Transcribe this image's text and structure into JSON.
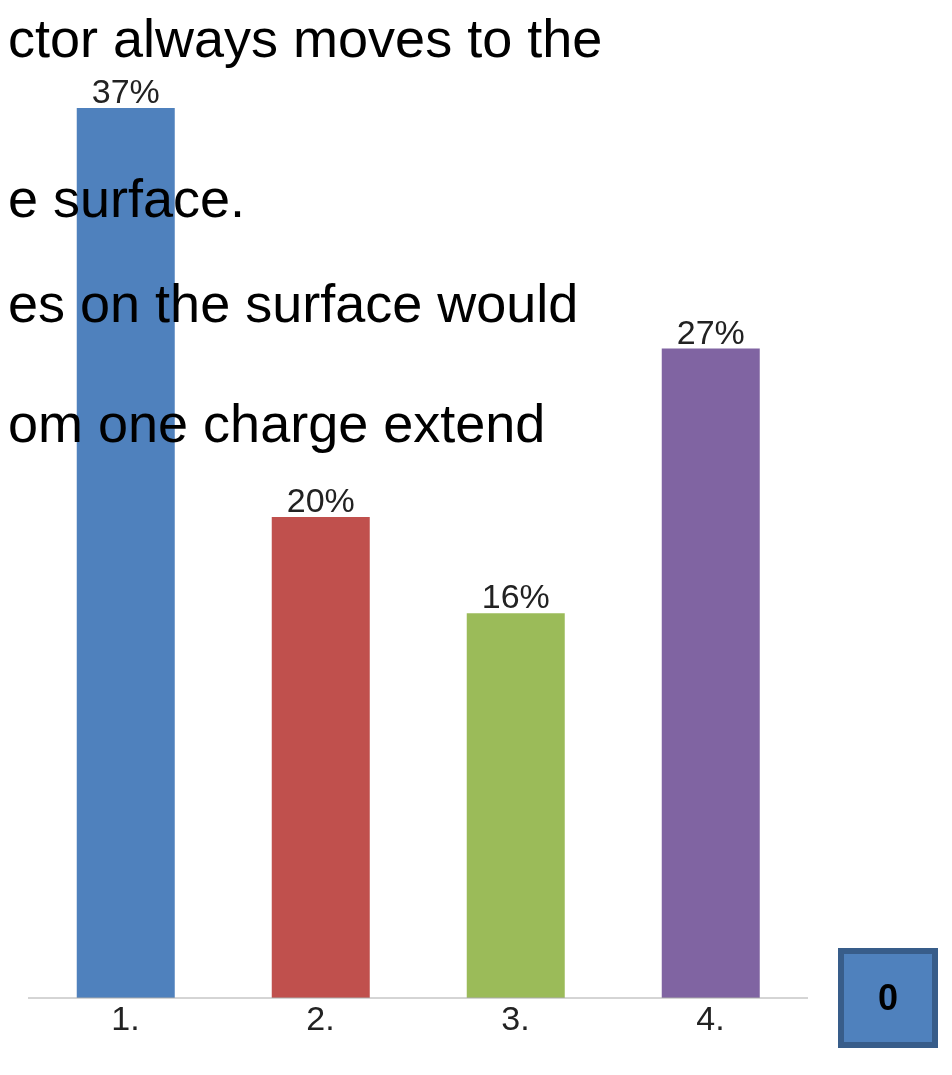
{
  "chart_data": {
    "type": "bar",
    "categories": [
      "1.",
      "2.",
      "3.",
      "4."
    ],
    "values": [
      37,
      20,
      16,
      27
    ],
    "colors": [
      "#4f81bd",
      "#c0504d",
      "#9bbb59",
      "#8064a2"
    ],
    "value_labels": [
      "37%",
      "20%",
      "16%",
      "27%"
    ],
    "annotations": [
      "ctor always moves to the",
      "e surface.",
      "es on the surface would",
      "om one charge extend",
      "0"
    ]
  }
}
